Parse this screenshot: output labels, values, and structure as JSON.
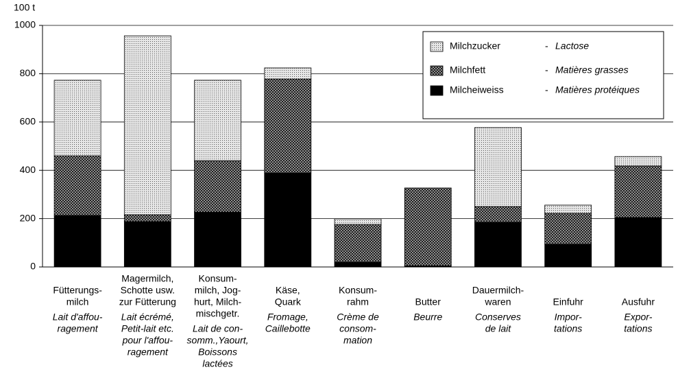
{
  "chart_data": {
    "type": "stacked_bar",
    "y_unit": "100 t",
    "categories": [
      {
        "de": [
          "Fütterungs-",
          "milch"
        ],
        "fr": [
          "Lait d'affou-",
          "ragement"
        ]
      },
      {
        "de": [
          "Magermilch,",
          "Schotte usw.",
          "zur Fütterung"
        ],
        "fr": [
          "Lait écrémé,",
          "Petit-lait etc.",
          "pour l'affou-",
          "ragement"
        ]
      },
      {
        "de": [
          "Konsum-",
          "milch, Jog-",
          "hurt, Milch-",
          "mischgetr."
        ],
        "fr": [
          "Lait de con-",
          "somm.,Yaourt,",
          "Boissons",
          "lactées"
        ]
      },
      {
        "de": [
          "Käse,",
          "Quark"
        ],
        "fr": [
          "Fromage,",
          "Caillebotte"
        ]
      },
      {
        "de": [
          "Konsum-",
          "rahm"
        ],
        "fr": [
          "Crème de",
          "consom-",
          "mation"
        ]
      },
      {
        "de": [
          "Butter"
        ],
        "fr": [
          "Beurre"
        ]
      },
      {
        "de": [
          "Dauermilch-",
          "waren"
        ],
        "fr": [
          "Conserves",
          "de lait"
        ]
      },
      {
        "de": [
          "Einfuhr"
        ],
        "fr": [
          "Impor-",
          "tations"
        ]
      },
      {
        "de": [
          "Ausfuhr"
        ],
        "fr": [
          "Expor-",
          "tations"
        ]
      }
    ],
    "series": [
      {
        "name": "Milcheiweiss",
        "name_fr": "Matières protéiques",
        "color": "#000000",
        "pattern": "solid",
        "values": [
          213,
          188,
          227,
          389,
          20,
          5,
          185,
          94,
          205
        ]
      },
      {
        "name": "Milchfett",
        "name_fr": "Matières grasses",
        "color": "#7a7a7a",
        "pattern": "cross",
        "values": [
          247,
          28,
          213,
          389,
          156,
          322,
          65,
          128,
          213
        ]
      },
      {
        "name": "Milchzucker",
        "name_fr": "Lactose",
        "color": "#c4c4c4",
        "pattern": "dots",
        "values": [
          313,
          741,
          333,
          46,
          23,
          0,
          327,
          34,
          39
        ]
      }
    ],
    "legend_separator": "-",
    "ylim": [
      0,
      1000
    ],
    "yticks": [
      0,
      200,
      400,
      600,
      800,
      1000
    ],
    "grid": true
  }
}
